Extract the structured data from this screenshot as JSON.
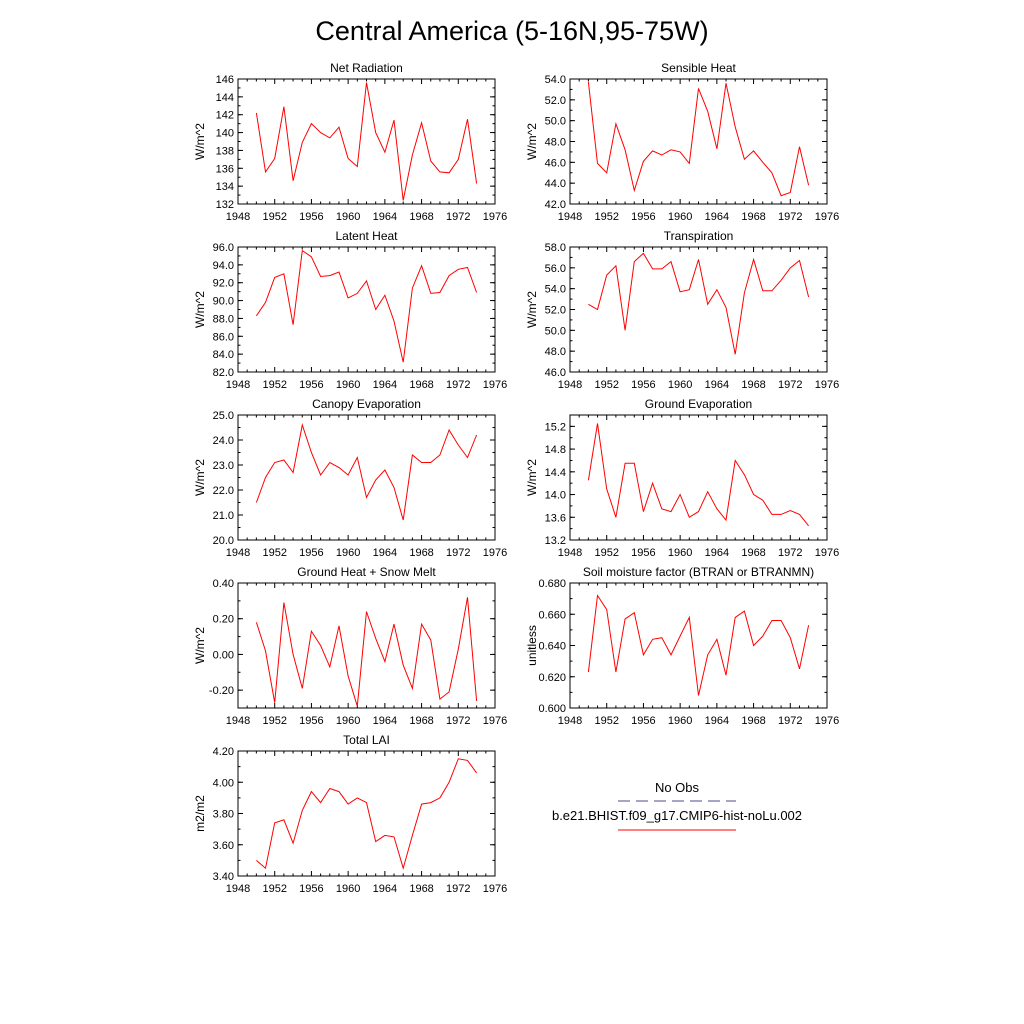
{
  "figure": {
    "title": "Central America (5-16N,95-75W)",
    "series_color": "#ff0000",
    "obs_color": "#4b4b8c"
  },
  "legend": {
    "obs_label": "No Obs",
    "model_label": "b.e21.BHIST.f09_g17.CMIP6-hist-noLu.002"
  },
  "chart_data": [
    {
      "type": "line",
      "title": "Net Radiation",
      "ylabel": "W/m^2",
      "xlim": [
        1948,
        1976
      ],
      "ylim": [
        132,
        146
      ],
      "xticks": [
        "1948",
        "1952",
        "1956",
        "1960",
        "1964",
        "1968",
        "1972",
        "1976"
      ],
      "yticks": [
        "132",
        "134",
        "136",
        "138",
        "140",
        "142",
        "144",
        "146"
      ],
      "x": [
        1950,
        1951,
        1952,
        1953,
        1954,
        1955,
        1956,
        1957,
        1958,
        1959,
        1960,
        1961,
        1962,
        1963,
        1964,
        1965,
        1966,
        1967,
        1968,
        1969,
        1970,
        1971,
        1972,
        1973,
        1974
      ],
      "series": [
        {
          "values": [
            142.2,
            135.6,
            137.1,
            142.9,
            134.6,
            138.9,
            141.0,
            140.0,
            139.4,
            140.6,
            137.1,
            136.2,
            145.6,
            140.0,
            137.8,
            141.4,
            132.4,
            137.5,
            141.1,
            136.8,
            135.6,
            135.5,
            137.0,
            141.5,
            134.3
          ]
        }
      ]
    },
    {
      "type": "line",
      "title": "Sensible Heat",
      "ylabel": "W/m^2",
      "xlim": [
        1948,
        1976
      ],
      "ylim": [
        42,
        54
      ],
      "xticks": [
        "1948",
        "1952",
        "1956",
        "1960",
        "1964",
        "1968",
        "1972",
        "1976"
      ],
      "yticks": [
        "42.0",
        "44.0",
        "46.0",
        "48.0",
        "50.0",
        "52.0",
        "54.0"
      ],
      "x": [
        1950,
        1951,
        1952,
        1953,
        1954,
        1955,
        1956,
        1957,
        1958,
        1959,
        1960,
        1961,
        1962,
        1963,
        1964,
        1965,
        1966,
        1967,
        1968,
        1969,
        1970,
        1971,
        1972,
        1973,
        1974
      ],
      "series": [
        {
          "values": [
            53.7,
            45.9,
            45.0,
            49.7,
            47.2,
            43.3,
            46.1,
            47.1,
            46.7,
            47.2,
            47.0,
            45.9,
            53.1,
            50.9,
            47.3,
            53.6,
            49.4,
            46.3,
            47.1,
            46.0,
            45.0,
            42.8,
            43.1,
            47.5,
            43.8
          ]
        }
      ]
    },
    {
      "type": "line",
      "title": "Latent Heat",
      "ylabel": "W/m^2",
      "xlim": [
        1948,
        1976
      ],
      "ylim": [
        82,
        96
      ],
      "xticks": [
        "1948",
        "1952",
        "1956",
        "1960",
        "1964",
        "1968",
        "1972",
        "1976"
      ],
      "yticks": [
        "82.0",
        "84.0",
        "86.0",
        "88.0",
        "90.0",
        "92.0",
        "94.0",
        "96.0"
      ],
      "x": [
        1950,
        1951,
        1952,
        1953,
        1954,
        1955,
        1956,
        1957,
        1958,
        1959,
        1960,
        1961,
        1962,
        1963,
        1964,
        1965,
        1966,
        1967,
        1968,
        1969,
        1970,
        1971,
        1972,
        1973,
        1974
      ],
      "series": [
        {
          "values": [
            88.3,
            89.8,
            92.6,
            93.0,
            87.3,
            95.6,
            94.9,
            92.7,
            92.8,
            93.2,
            90.3,
            90.8,
            92.2,
            89.0,
            90.6,
            87.7,
            83.1,
            91.4,
            93.9,
            90.8,
            90.9,
            92.8,
            93.5,
            93.7,
            90.9
          ]
        }
      ]
    },
    {
      "type": "line",
      "title": "Transpiration",
      "ylabel": "W/m^2",
      "xlim": [
        1948,
        1976
      ],
      "ylim": [
        46,
        58
      ],
      "xticks": [
        "1948",
        "1952",
        "1956",
        "1960",
        "1964",
        "1968",
        "1972",
        "1976"
      ],
      "yticks": [
        "46.0",
        "48.0",
        "50.0",
        "52.0",
        "54.0",
        "56.0",
        "58.0"
      ],
      "x": [
        1950,
        1951,
        1952,
        1953,
        1954,
        1955,
        1956,
        1957,
        1958,
        1959,
        1960,
        1961,
        1962,
        1963,
        1964,
        1965,
        1966,
        1967,
        1968,
        1969,
        1970,
        1971,
        1972,
        1973,
        1974
      ],
      "series": [
        {
          "values": [
            52.5,
            52.0,
            55.3,
            56.2,
            50.0,
            56.6,
            57.4,
            55.9,
            55.9,
            56.6,
            53.7,
            53.9,
            56.8,
            52.5,
            53.9,
            52.2,
            47.7,
            53.6,
            56.8,
            53.8,
            53.8,
            54.8,
            56.0,
            56.7,
            53.2
          ]
        }
      ]
    },
    {
      "type": "line",
      "title": "Canopy Evaporation",
      "ylabel": "W/m^2",
      "xlim": [
        1948,
        1976
      ],
      "ylim": [
        20,
        25
      ],
      "xticks": [
        "1948",
        "1952",
        "1956",
        "1960",
        "1964",
        "1968",
        "1972",
        "1976"
      ],
      "yticks": [
        "20.0",
        "21.0",
        "22.0",
        "23.0",
        "24.0",
        "25.0"
      ],
      "x": [
        1950,
        1951,
        1952,
        1953,
        1954,
        1955,
        1956,
        1957,
        1958,
        1959,
        1960,
        1961,
        1962,
        1963,
        1964,
        1965,
        1966,
        1967,
        1968,
        1969,
        1970,
        1971,
        1972,
        1973,
        1974
      ],
      "series": [
        {
          "values": [
            21.5,
            22.5,
            23.1,
            23.2,
            22.7,
            24.6,
            23.5,
            22.6,
            23.1,
            22.9,
            22.6,
            23.3,
            21.7,
            22.4,
            22.8,
            22.1,
            20.8,
            23.4,
            23.1,
            23.1,
            23.4,
            24.4,
            23.8,
            23.3,
            24.2
          ]
        }
      ]
    },
    {
      "type": "line",
      "title": "Ground Evaporation",
      "ylabel": "W/m^2",
      "xlim": [
        1948,
        1976
      ],
      "ylim": [
        13.2,
        15.4
      ],
      "xticks": [
        "1948",
        "1952",
        "1956",
        "1960",
        "1964",
        "1968",
        "1972",
        "1976"
      ],
      "yticks": [
        "13.2",
        "13.6",
        "14.0",
        "14.4",
        "14.8",
        "15.2"
      ],
      "x": [
        1950,
        1951,
        1952,
        1953,
        1954,
        1955,
        1956,
        1957,
        1958,
        1959,
        1960,
        1961,
        1962,
        1963,
        1964,
        1965,
        1966,
        1967,
        1968,
        1969,
        1970,
        1971,
        1972,
        1973,
        1974
      ],
      "series": [
        {
          "values": [
            14.25,
            15.25,
            14.1,
            13.6,
            14.55,
            14.55,
            13.7,
            14.2,
            13.75,
            13.7,
            14.0,
            13.6,
            13.7,
            14.05,
            13.75,
            13.55,
            14.6,
            14.35,
            14.0,
            13.9,
            13.65,
            13.65,
            13.72,
            13.65,
            13.45
          ]
        }
      ]
    },
    {
      "type": "line",
      "title": "Ground Heat + Snow Melt",
      "ylabel": "W/m^2",
      "xlim": [
        1948,
        1976
      ],
      "ylim": [
        -0.3,
        0.4
      ],
      "xticks": [
        "1948",
        "1952",
        "1956",
        "1960",
        "1964",
        "1968",
        "1972",
        "1976"
      ],
      "yticks": [
        "-0.20",
        "0.00",
        "0.20",
        "0.40"
      ],
      "ytick_values": [
        -0.2,
        0.0,
        0.2,
        0.4
      ],
      "x": [
        1950,
        1951,
        1952,
        1953,
        1954,
        1955,
        1956,
        1957,
        1958,
        1959,
        1960,
        1961,
        1962,
        1963,
        1964,
        1965,
        1966,
        1967,
        1968,
        1969,
        1970,
        1971,
        1972,
        1973,
        1974
      ],
      "series": [
        {
          "values": [
            0.18,
            0.02,
            -0.27,
            0.29,
            0.0,
            -0.19,
            0.13,
            0.05,
            -0.07,
            0.16,
            -0.12,
            -0.29,
            0.24,
            0.09,
            -0.04,
            0.17,
            -0.06,
            -0.19,
            0.17,
            0.08,
            -0.25,
            -0.21,
            0.03,
            0.32,
            -0.26
          ]
        }
      ]
    },
    {
      "type": "line",
      "title": "Soil moisture factor (BTRAN or BTRANMN)",
      "ylabel": "unitless",
      "xlim": [
        1948,
        1976
      ],
      "ylim": [
        0.6,
        0.68
      ],
      "xticks": [
        "1948",
        "1952",
        "1956",
        "1960",
        "1964",
        "1968",
        "1972",
        "1976"
      ],
      "yticks": [
        "0.600",
        "0.620",
        "0.640",
        "0.660",
        "0.680"
      ],
      "x": [
        1950,
        1951,
        1952,
        1953,
        1954,
        1955,
        1956,
        1957,
        1958,
        1959,
        1960,
        1961,
        1962,
        1963,
        1964,
        1965,
        1966,
        1967,
        1968,
        1969,
        1970,
        1971,
        1972,
        1973,
        1974
      ],
      "series": [
        {
          "values": [
            0.623,
            0.672,
            0.663,
            0.623,
            0.657,
            0.661,
            0.634,
            0.644,
            0.645,
            0.634,
            0.646,
            0.658,
            0.608,
            0.634,
            0.644,
            0.621,
            0.658,
            0.662,
            0.64,
            0.646,
            0.656,
            0.656,
            0.645,
            0.625,
            0.653
          ]
        }
      ]
    },
    {
      "type": "line",
      "title": "Total LAI",
      "ylabel": "m2/m2",
      "xlim": [
        1948,
        1976
      ],
      "ylim": [
        3.4,
        4.2
      ],
      "xticks": [
        "1948",
        "1952",
        "1956",
        "1960",
        "1964",
        "1968",
        "1972",
        "1976"
      ],
      "yticks": [
        "3.40",
        "3.60",
        "3.80",
        "4.00",
        "4.20"
      ],
      "x": [
        1950,
        1951,
        1952,
        1953,
        1954,
        1955,
        1956,
        1957,
        1958,
        1959,
        1960,
        1961,
        1962,
        1963,
        1964,
        1965,
        1966,
        1967,
        1968,
        1969,
        1970,
        1971,
        1972,
        1973,
        1974
      ],
      "series": [
        {
          "values": [
            3.5,
            3.45,
            3.74,
            3.76,
            3.61,
            3.82,
            3.94,
            3.87,
            3.96,
            3.94,
            3.86,
            3.9,
            3.87,
            3.62,
            3.66,
            3.65,
            3.45,
            3.66,
            3.86,
            3.87,
            3.9,
            4.0,
            4.15,
            4.14,
            4.06
          ]
        }
      ]
    }
  ]
}
